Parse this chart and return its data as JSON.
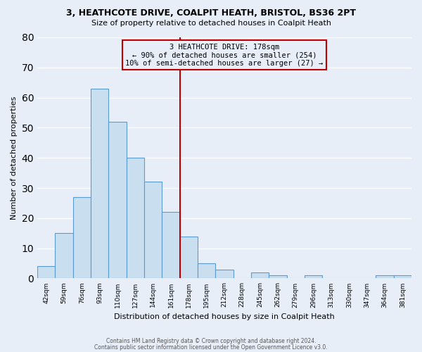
{
  "title1": "3, HEATHCOTE DRIVE, COALPIT HEATH, BRISTOL, BS36 2PT",
  "title2": "Size of property relative to detached houses in Coalpit Heath",
  "xlabel": "Distribution of detached houses by size in Coalpit Heath",
  "ylabel": "Number of detached properties",
  "bin_labels": [
    "42sqm",
    "59sqm",
    "76sqm",
    "93sqm",
    "110sqm",
    "127sqm",
    "144sqm",
    "161sqm",
    "178sqm",
    "195sqm",
    "212sqm",
    "228sqm",
    "245sqm",
    "262sqm",
    "279sqm",
    "296sqm",
    "313sqm",
    "330sqm",
    "347sqm",
    "364sqm",
    "381sqm"
  ],
  "bar_heights": [
    4,
    15,
    27,
    63,
    52,
    40,
    32,
    22,
    14,
    5,
    3,
    0,
    2,
    1,
    0,
    1,
    0,
    0,
    0,
    1,
    1
  ],
  "bar_color": "#c9dff0",
  "bar_edge_color": "#5b9bd5",
  "vline_bin_index": 8,
  "vline_color": "#c00000",
  "annotation_title": "3 HEATHCOTE DRIVE: 178sqm",
  "annotation_line1": "← 90% of detached houses are smaller (254)",
  "annotation_line2": "10% of semi-detached houses are larger (27) →",
  "annotation_box_edge": "#c00000",
  "ylim": [
    0,
    80
  ],
  "yticks": [
    0,
    10,
    20,
    30,
    40,
    50,
    60,
    70,
    80
  ],
  "footer1": "Contains HM Land Registry data © Crown copyright and database right 2024.",
  "footer2": "Contains public sector information licensed under the Open Government Licence v3.0.",
  "bg_color": "#e8eef8",
  "grid_color": "#ffffff",
  "n_bins": 21
}
